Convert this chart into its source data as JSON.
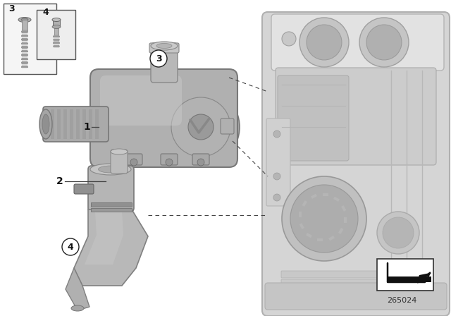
{
  "bg_color": "#ffffff",
  "diagram_id": "265024",
  "line_color": "#444444",
  "text_color": "#111111",
  "part_gray": "#a8a8a8",
  "part_light": "#d0d0d0",
  "part_dark": "#787878",
  "engine_gray": "#c8c8c8",
  "engine_light": "#e0e0e0",
  "engine_dark": "#909090",
  "inset_bg": "#f5f5f5"
}
